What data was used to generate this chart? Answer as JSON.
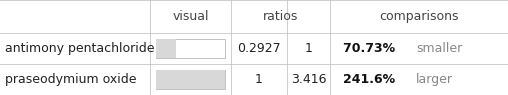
{
  "rows": [
    {
      "name": "antimony pentachloride",
      "ratio1": "0.2927",
      "ratio2": "1",
      "comparison_bold": "70.73%",
      "comparison_text": "smaller",
      "bar_fill": 0.2927,
      "bar_color": "#d8d8d8",
      "bar_border": "#aaaaaa"
    },
    {
      "name": "praseodymium oxide",
      "ratio1": "1",
      "ratio2": "3.416",
      "comparison_bold": "241.6%",
      "comparison_text": "larger",
      "bar_fill": 1.0,
      "bar_color": "#d8d8d8",
      "bar_border": "#aaaaaa"
    }
  ],
  "col_headers": [
    "visual",
    "ratios",
    "comparisons"
  ],
  "bg_color": "#ffffff",
  "grid_color": "#bbbbbb",
  "font_size": 9,
  "bold_color": "#111111",
  "light_color": "#888888",
  "text_color": "#222222",
  "header_color": "#444444"
}
